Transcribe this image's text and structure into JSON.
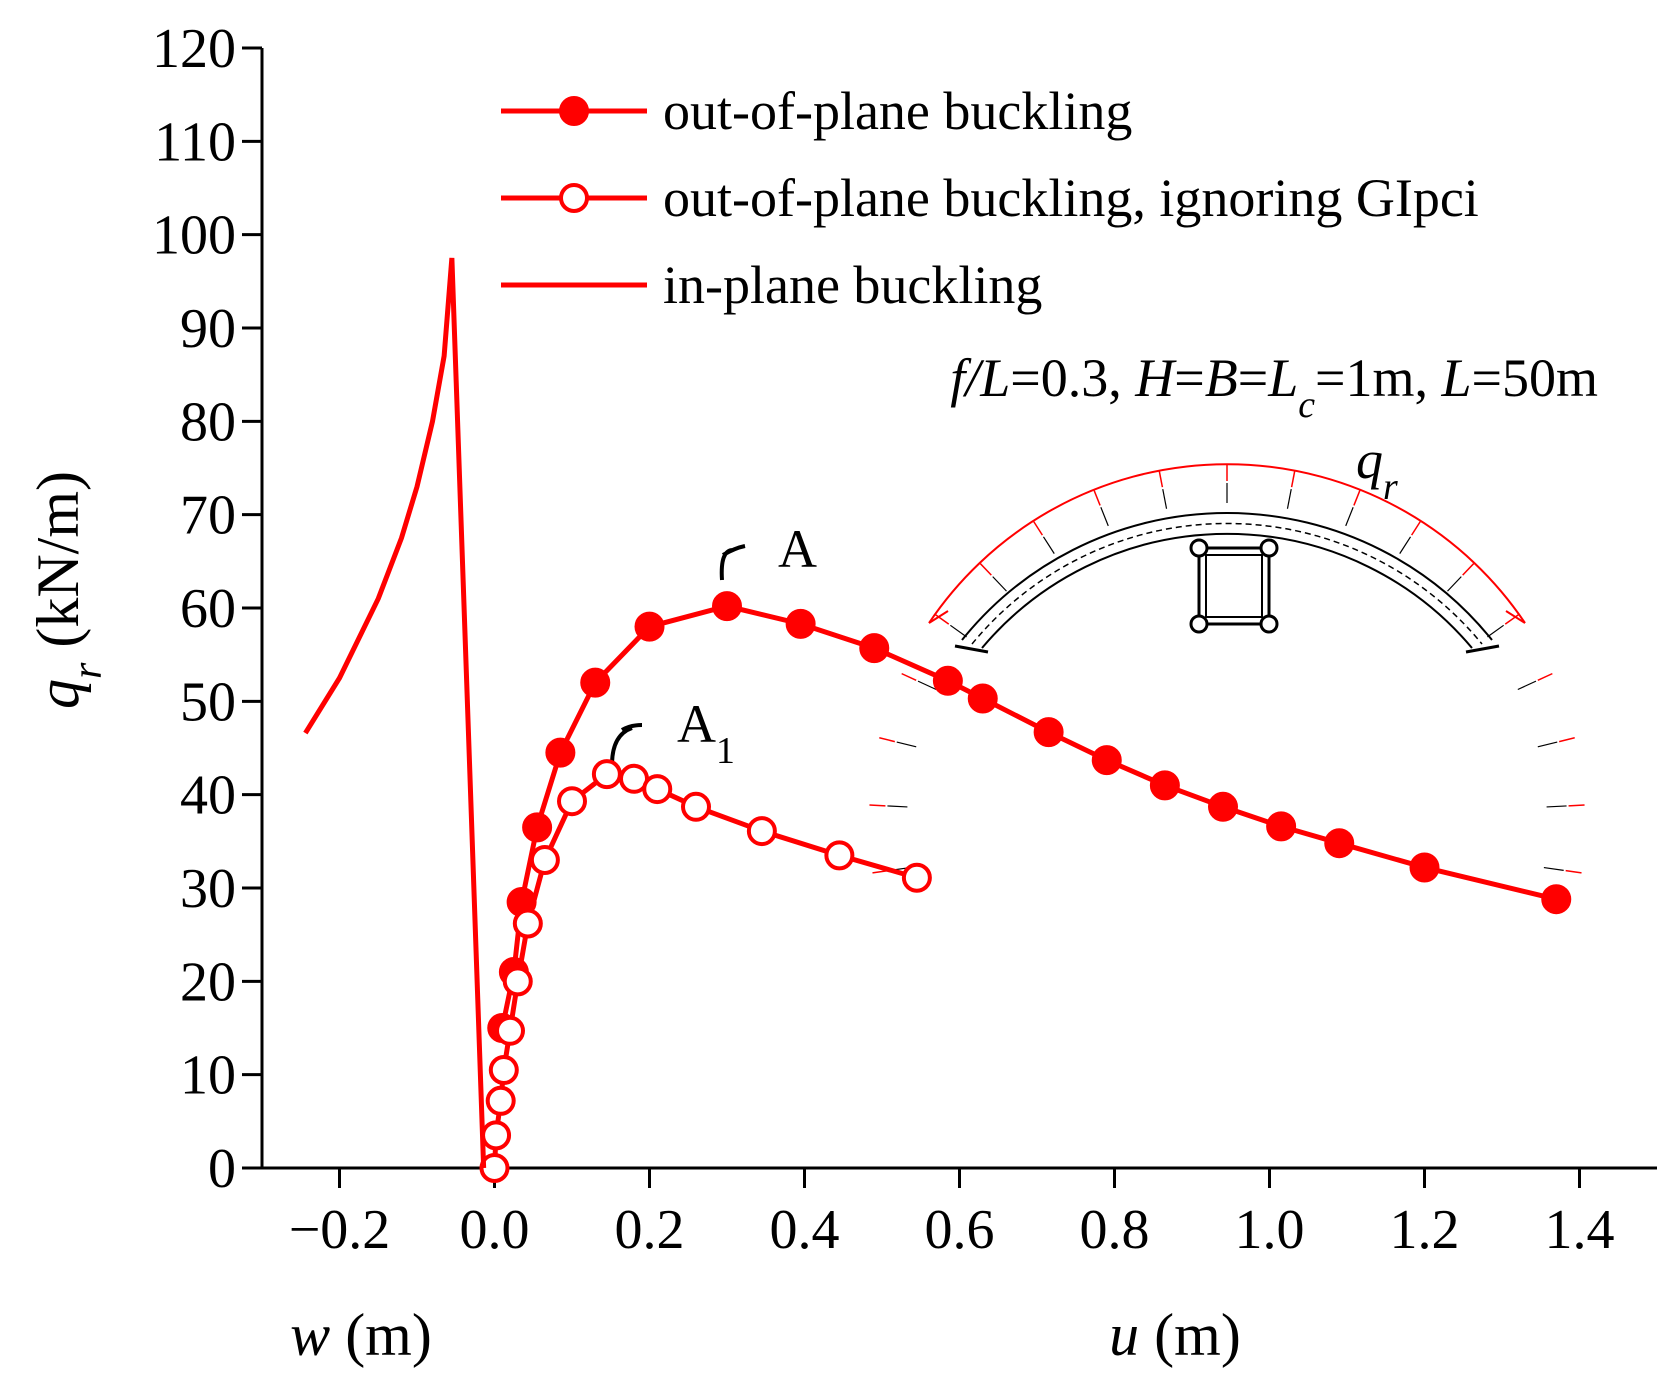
{
  "chart_data": {
    "type": "line",
    "xlabel_left": [
      "w",
      " (m)"
    ],
    "xlabel_right": [
      "u",
      " (m)"
    ],
    "ylabel": [
      "q",
      "r",
      " (kN/m)"
    ],
    "xlim": [
      -0.3,
      1.5
    ],
    "ylim": [
      0,
      120
    ],
    "xticks": [
      {
        "value": -0.2,
        "label": "−0.2"
      },
      {
        "value": 0,
        "label": "0.0"
      },
      0.2,
      0.4,
      0.6,
      0.8,
      {
        "value": 1,
        "label": "1.0"
      },
      1.2,
      1.4
    ],
    "yticks": [
      0,
      10,
      20,
      30,
      40,
      50,
      60,
      70,
      80,
      90,
      100,
      110,
      120
    ],
    "parameters": [
      "f/L",
      "=0.3, ",
      "H",
      "=",
      "B",
      "=",
      "L",
      "c",
      "=1m, ",
      "L",
      "=50m"
    ],
    "inset_label": [
      "q",
      "r"
    ],
    "annotations": [
      {
        "text": "A"
      },
      {
        "text": "A",
        "sub": "1"
      }
    ],
    "series": [
      {
        "name": "out-of-plane buckling",
        "color": "#ff0000",
        "marker": "filled",
        "x": [
          0.01,
          0.025,
          0.035,
          0.055,
          0.085,
          0.13,
          0.2,
          0.3,
          0.395,
          0.49,
          0.585,
          0.63,
          0.715,
          0.79,
          0.865,
          0.94,
          1.015,
          1.09,
          1.2,
          1.37
        ],
        "values": [
          15,
          21,
          28.5,
          36.5,
          44.5,
          52,
          58,
          60.2,
          58.3,
          55.7,
          52.2,
          50.3,
          46.7,
          43.7,
          41,
          38.7,
          36.6,
          34.8,
          32.2,
          28.8
        ]
      },
      {
        "name": "out-of-plane buckling, ignoring GIpci",
        "color": "#ff0000",
        "marker": "open",
        "x": [
          0,
          0.002,
          0.008,
          0.012,
          0.02,
          0.03,
          0.043,
          0.065,
          0.1,
          0.145,
          0.18,
          0.21,
          0.26,
          0.345,
          0.445,
          0.545
        ],
        "values": [
          0,
          3.5,
          7.2,
          10.5,
          14.7,
          20,
          26.2,
          33,
          39.3,
          42.2,
          41.7,
          40.6,
          38.7,
          36.1,
          33.5,
          31.1
        ]
      },
      {
        "name": "in-plane buckling",
        "color": "#ff0000",
        "marker": "none",
        "x": [
          -0.244,
          -0.2,
          -0.15,
          -0.12,
          -0.1,
          -0.08,
          -0.065,
          -0.055,
          -0.014
        ],
        "values": [
          46.6,
          52.5,
          61,
          67.5,
          73,
          80,
          87,
          97.5,
          0
        ]
      }
    ]
  }
}
